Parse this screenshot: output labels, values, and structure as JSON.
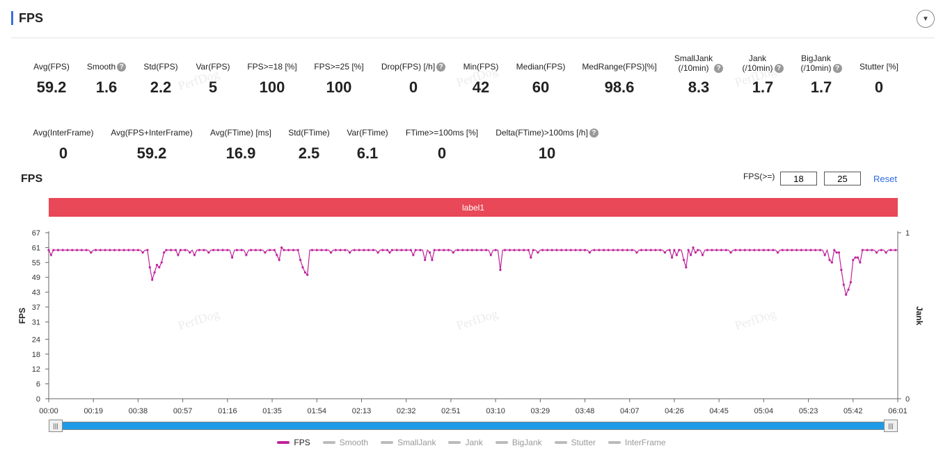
{
  "header": {
    "title": "FPS",
    "toggle_icon": "chevron-down-icon"
  },
  "metrics_row1": [
    {
      "label": "Avg(FPS)",
      "value": "59.2",
      "help": false
    },
    {
      "label": "Smooth",
      "value": "1.6",
      "help": true
    },
    {
      "label": "Std(FPS)",
      "value": "2.2",
      "help": false
    },
    {
      "label": "Var(FPS)",
      "value": "5",
      "help": false
    },
    {
      "label": "FPS>=18 [%]",
      "value": "100",
      "help": false
    },
    {
      "label": "FPS>=25 [%]",
      "value": "100",
      "help": false
    },
    {
      "label": "Drop(FPS) [/h]",
      "value": "0",
      "help": true
    },
    {
      "label": "Min(FPS)",
      "value": "42",
      "help": false
    },
    {
      "label": "Median(FPS)",
      "value": "60",
      "help": false
    },
    {
      "label": "MedRange(FPS)[%]",
      "value": "98.6",
      "help": false
    },
    {
      "label": "SmallJank\n(/10min)",
      "value": "8.3",
      "help": true
    },
    {
      "label": "Jank\n(/10min)",
      "value": "1.7",
      "help": true
    },
    {
      "label": "BigJank\n(/10min)",
      "value": "1.7",
      "help": true
    },
    {
      "label": "Stutter [%]",
      "value": "0",
      "help": false
    }
  ],
  "metrics_row2": [
    {
      "label": "Avg(InterFrame)",
      "value": "0",
      "help": false
    },
    {
      "label": "Avg(FPS+InterFrame)",
      "value": "59.2",
      "help": false
    },
    {
      "label": "Avg(FTime) [ms]",
      "value": "16.9",
      "help": false
    },
    {
      "label": "Std(FTime)",
      "value": "2.5",
      "help": false
    },
    {
      "label": "Var(FTime)",
      "value": "6.1",
      "help": false
    },
    {
      "label": "FTime>=100ms [%]",
      "value": "0",
      "help": false
    },
    {
      "label": "Delta(FTime)>100ms [/h]",
      "value": "10",
      "help": true
    }
  ],
  "chart_section": {
    "title": "FPS",
    "threshold_label": "FPS(>=)",
    "threshold_1": "18",
    "threshold_2": "25",
    "reset_label": "Reset",
    "band_label": "label1",
    "watermark": "PerfDog"
  },
  "legend": [
    {
      "name": "FPS",
      "color": "#c0229b",
      "active": true
    },
    {
      "name": "Smooth",
      "color": "#bbbbbb",
      "active": false
    },
    {
      "name": "SmallJank",
      "color": "#bbbbbb",
      "active": false
    },
    {
      "name": "Jank",
      "color": "#bbbbbb",
      "active": false
    },
    {
      "name": "BigJank",
      "color": "#bbbbbb",
      "active": false
    },
    {
      "name": "Stutter",
      "color": "#bbbbbb",
      "active": false
    },
    {
      "name": "InterFrame",
      "color": "#bbbbbb",
      "active": false
    }
  ],
  "slider_handle_icon": "grip-icon",
  "chart_data": {
    "type": "line",
    "ylabel": "FPS",
    "y2label": "Jank",
    "ylim": [
      0,
      67
    ],
    "yticks": [
      0,
      6,
      12,
      18,
      24,
      31,
      37,
      43,
      49,
      55,
      61,
      67
    ],
    "y2ticks": [
      0,
      1
    ],
    "xlim_seconds": [
      0,
      361
    ],
    "xtick_labels": [
      "00:00",
      "00:19",
      "00:38",
      "00:57",
      "01:16",
      "01:35",
      "01:54",
      "02:13",
      "02:32",
      "02:51",
      "03:10",
      "03:29",
      "03:48",
      "04:07",
      "04:26",
      "04:45",
      "05:04",
      "05:23",
      "05:42",
      "06:01"
    ],
    "series": [
      {
        "name": "FPS",
        "color": "#c0229b",
        "baseline": 60,
        "dips": [
          {
            "t": 1,
            "v": 58
          },
          {
            "t": 18,
            "v": 59
          },
          {
            "t": 40,
            "v": 59
          },
          {
            "t": 43,
            "v": 53
          },
          {
            "t": 44,
            "v": 48
          },
          {
            "t": 45,
            "v": 51
          },
          {
            "t": 46,
            "v": 54
          },
          {
            "t": 47,
            "v": 53
          },
          {
            "t": 48,
            "v": 55
          },
          {
            "t": 49,
            "v": 59
          },
          {
            "t": 55,
            "v": 58
          },
          {
            "t": 60,
            "v": 59
          },
          {
            "t": 62,
            "v": 58
          },
          {
            "t": 68,
            "v": 59
          },
          {
            "t": 78,
            "v": 57
          },
          {
            "t": 84,
            "v": 58
          },
          {
            "t": 92,
            "v": 59
          },
          {
            "t": 97,
            "v": 58
          },
          {
            "t": 98,
            "v": 56
          },
          {
            "t": 99,
            "v": 61
          },
          {
            "t": 104,
            "v": 60
          },
          {
            "t": 107,
            "v": 56
          },
          {
            "t": 108,
            "v": 53
          },
          {
            "t": 109,
            "v": 51
          },
          {
            "t": 110,
            "v": 50
          },
          {
            "t": 120,
            "v": 59
          },
          {
            "t": 128,
            "v": 59
          },
          {
            "t": 140,
            "v": 59
          },
          {
            "t": 145,
            "v": 59
          },
          {
            "t": 155,
            "v": 58
          },
          {
            "t": 160,
            "v": 56
          },
          {
            "t": 162,
            "v": 59
          },
          {
            "t": 163,
            "v": 56
          },
          {
            "t": 172,
            "v": 59
          },
          {
            "t": 188,
            "v": 58
          },
          {
            "t": 192,
            "v": 52
          },
          {
            "t": 205,
            "v": 57
          },
          {
            "t": 208,
            "v": 59
          },
          {
            "t": 230,
            "v": 59
          },
          {
            "t": 250,
            "v": 59
          },
          {
            "t": 262,
            "v": 59
          },
          {
            "t": 265,
            "v": 57
          },
          {
            "t": 267,
            "v": 58
          },
          {
            "t": 270,
            "v": 56
          },
          {
            "t": 271,
            "v": 53
          },
          {
            "t": 273,
            "v": 58
          },
          {
            "t": 274,
            "v": 61
          },
          {
            "t": 275,
            "v": 59
          },
          {
            "t": 278,
            "v": 58
          },
          {
            "t": 290,
            "v": 59
          },
          {
            "t": 310,
            "v": 59
          },
          {
            "t": 330,
            "v": 58
          },
          {
            "t": 332,
            "v": 56
          },
          {
            "t": 333,
            "v": 55
          },
          {
            "t": 335,
            "v": 59
          },
          {
            "t": 336,
            "v": 59
          },
          {
            "t": 337,
            "v": 52
          },
          {
            "t": 338,
            "v": 46
          },
          {
            "t": 339,
            "v": 42
          },
          {
            "t": 340,
            "v": 44
          },
          {
            "t": 341,
            "v": 47
          },
          {
            "t": 342,
            "v": 56
          },
          {
            "t": 343,
            "v": 57
          },
          {
            "t": 344,
            "v": 57
          },
          {
            "t": 345,
            "v": 55
          },
          {
            "t": 346,
            "v": 60
          },
          {
            "t": 352,
            "v": 59
          },
          {
            "t": 356,
            "v": 59
          }
        ]
      }
    ]
  }
}
